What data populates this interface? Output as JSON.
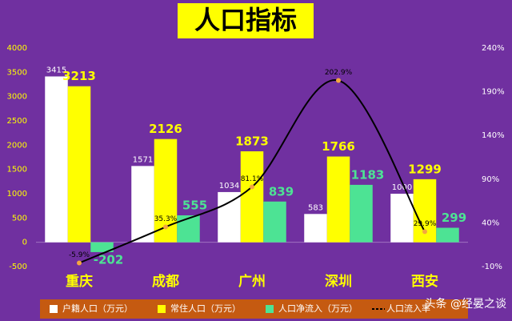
{
  "chart_data": {
    "type": "bar",
    "title": "人口指标",
    "categories": [
      "重庆",
      "成都",
      "广州",
      "深圳",
      "西安"
    ],
    "series": [
      {
        "name": "户籍人口（万元）",
        "color": "#ffffff",
        "values": [
          3415,
          1571,
          1034,
          583,
          1000
        ]
      },
      {
        "name": "常住人口（万元）",
        "color": "#ffff00",
        "values": [
          3213,
          2126,
          1873,
          1766,
          1299
        ]
      },
      {
        "name": "人口净流入（万元）",
        "color": "#4de394",
        "values": [
          -202,
          555,
          839,
          1183,
          299
        ]
      },
      {
        "name": "人口流入率",
        "type": "line",
        "axis": "y2",
        "color": "#000000",
        "marker_color": "#f4a640",
        "values": [
          -5.9,
          35.3,
          81.1,
          202.9,
          29.9
        ],
        "value_labels": [
          "-5.9%",
          "35.3%",
          "81.1%",
          "202.9%",
          "29.9%"
        ]
      }
    ],
    "ylim": [
      -500,
      4000
    ],
    "yticks": [
      -500,
      0,
      500,
      1000,
      1500,
      2000,
      2500,
      3000,
      3500,
      4000
    ],
    "y2lim": [
      -10,
      240
    ],
    "y2ticks": [
      {
        "value": -10,
        "label": "-10%"
      },
      {
        "value": 40,
        "label": "40%"
      },
      {
        "value": 90,
        "label": "90%"
      },
      {
        "value": 140,
        "label": "140%"
      },
      {
        "value": 190,
        "label": "190%"
      },
      {
        "value": 240,
        "label": "240%"
      }
    ],
    "grid": false,
    "legend": "bottom",
    "watermark": "头条 @经晏之谈"
  }
}
